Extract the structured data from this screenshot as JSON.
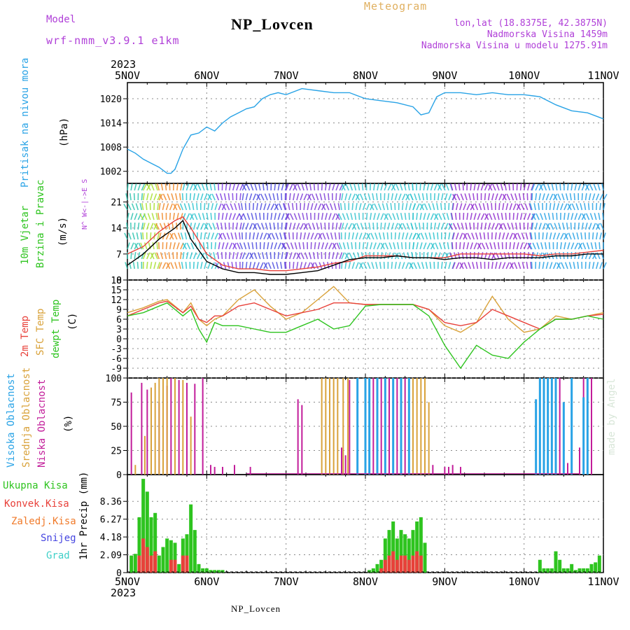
{
  "header": {
    "model_label": "Model",
    "model_value": "wrf-nmm_v3.9.1 e1km",
    "title": "NP_Lovcen",
    "meteogram": "Meteogram",
    "lonlat": "lon,lat (18.8375E, 42.3875N)",
    "elevation": "Nadmorska Visina 1459m",
    "model_elevation": "Nadmorska Visina u modelu 1275.91m",
    "year_top": "2023",
    "year_bottom": "2023",
    "footer": "NP_Lovcen",
    "watermark": "made by Angel"
  },
  "colors": {
    "pressure": "#29a3e6",
    "temp2m": "#e8413a",
    "sfc": "#d9a23a",
    "dew": "#2ec41f",
    "high_cloud": "#29a3e6",
    "mid_cloud": "#d9a23a",
    "low_cloud": "#c21d9a",
    "precip_total": "#2ec41f",
    "precip_conv": "#e8413a",
    "frozen": "#f07a2a",
    "snow": "#4545e0",
    "graupel": "#3fd0c8"
  },
  "chart_data": [
    {
      "id": "pressure",
      "type": "line",
      "ylabel_left": "Pritisak na nivou mora",
      "ylabel_unit": "(hPa)",
      "ylim": [
        999,
        1024
      ],
      "yticks": [
        "1002",
        "1008",
        "1014",
        "1020"
      ],
      "x_days": [
        "5NOV",
        "6NOV",
        "7NOV",
        "8NOV",
        "9NOV",
        "10NOV",
        "11NOV"
      ],
      "series": [
        {
          "x": [
            0,
            0.1,
            0.2,
            0.3,
            0.4,
            0.5,
            0.55,
            0.6,
            0.7,
            0.8,
            0.9,
            1.0,
            1.1,
            1.2,
            1.3,
            1.4,
            1.5,
            1.6,
            1.7,
            1.8,
            1.9,
            2.0,
            2.2,
            2.4,
            2.6,
            2.8,
            3.0,
            3.2,
            3.4,
            3.6,
            3.7,
            3.8,
            3.9,
            4.0,
            4.2,
            4.4,
            4.6,
            4.8,
            5.0,
            5.2,
            5.4,
            5.6,
            5.8,
            6.0
          ],
          "y": [
            1007.5,
            1006.5,
            1005,
            1004,
            1003,
            1001.5,
            1001.5,
            1002.5,
            1007.5,
            1011,
            1011.5,
            1013,
            1012,
            1014,
            1015.5,
            1016.5,
            1017.5,
            1018,
            1020,
            1021,
            1021.5,
            1021,
            1022.5,
            1022,
            1021.5,
            1021.5,
            1020,
            1019.5,
            1019,
            1018,
            1016,
            1016.5,
            1020.5,
            1021.5,
            1021.5,
            1021,
            1021.5,
            1021,
            1021,
            1020.5,
            1018.5,
            1017,
            1016.5,
            1015
          ]
        }
      ]
    },
    {
      "id": "wind",
      "type": "line",
      "ylabel_left": "10m Vjetar",
      "ylabel_left2": "Brzina i Pravac",
      "ylabel_unit": "(m/s)",
      "dir_label": "N^ W<-|->E  S",
      "ylim": [
        0,
        26
      ],
      "yticks": [
        "0",
        "7",
        "14",
        "21"
      ],
      "series": [
        {
          "x": [
            0,
            0.2,
            0.4,
            0.6,
            0.7,
            0.8,
            1.0,
            1.2,
            1.4,
            1.6,
            1.8,
            2.0,
            2.2,
            2.4,
            2.6,
            2.8,
            3.0,
            3.2,
            3.4,
            3.6,
            3.8,
            4.0,
            4.2,
            4.4,
            4.6,
            4.8,
            5.0,
            5.2,
            5.4,
            5.6,
            5.8,
            6.0
          ],
          "y": [
            7,
            9,
            13,
            16,
            17,
            14,
            7,
            4,
            3,
            3,
            2.5,
            2.5,
            3,
            3.5,
            4.5,
            5,
            6.5,
            6.5,
            6.5,
            6,
            6,
            6,
            7,
            7,
            7,
            7,
            7,
            6.5,
            7,
            7,
            7.5,
            8
          ]
        },
        {
          "x": [
            0,
            0.2,
            0.4,
            0.6,
            0.7,
            0.8,
            1.0,
            1.2,
            1.4,
            1.6,
            1.8,
            2.0,
            2.2,
            2.4,
            2.6,
            2.8,
            3.0,
            3.2,
            3.4,
            3.6,
            3.8,
            4.0,
            4.2,
            4.4,
            4.6,
            4.8,
            5.0,
            5.2,
            5.4,
            5.6,
            5.8,
            6.0
          ],
          "y": [
            4,
            7,
            11,
            14,
            16,
            11,
            5,
            3,
            2,
            2,
            1.5,
            1.5,
            2,
            2.5,
            4,
            5.5,
            6,
            6,
            6.5,
            6,
            6,
            5.5,
            6,
            6,
            5.5,
            6,
            6,
            6,
            6.5,
            6.5,
            7,
            7
          ]
        }
      ]
    },
    {
      "id": "temperature",
      "type": "line",
      "ylabel_left": "2m Temp",
      "ylabel_left2": "SFC Temp",
      "ylabel_left3": "dewpt Temp",
      "ylabel_unit": "(C)",
      "ylim": [
        -12,
        18
      ],
      "yticks": [
        "-9",
        "-6",
        "-3",
        "0",
        "3",
        "6",
        "9",
        "12",
        "15",
        "18"
      ],
      "series": [
        {
          "name": "2m",
          "x": [
            0,
            0.2,
            0.4,
            0.5,
            0.7,
            0.8,
            0.9,
            1.0,
            1.1,
            1.2,
            1.4,
            1.6,
            1.8,
            2.0,
            2.2,
            2.4,
            2.6,
            2.8,
            3.0,
            3.2,
            3.4,
            3.6,
            3.8,
            4.0,
            4.2,
            4.4,
            4.6,
            4.8,
            5.0,
            5.2,
            5.4,
            5.6,
            5.8,
            6.0
          ],
          "y": [
            7,
            9,
            11,
            11.5,
            8,
            10,
            6,
            5,
            7,
            7,
            10,
            11,
            9,
            7,
            8,
            9,
            11,
            11,
            10.5,
            10.5,
            10.5,
            10.5,
            9,
            5,
            4,
            5,
            9,
            7,
            5,
            3,
            6,
            6,
            7,
            7.5
          ]
        },
        {
          "name": "sfc",
          "x": [
            0,
            0.2,
            0.4,
            0.5,
            0.7,
            0.8,
            0.9,
            1.0,
            1.1,
            1.2,
            1.4,
            1.6,
            1.8,
            2.0,
            2.2,
            2.4,
            2.6,
            2.8,
            3.0,
            3.2,
            3.4,
            3.6,
            3.8,
            4.0,
            4.2,
            4.4,
            4.6,
            4.8,
            5.0,
            5.2,
            5.4,
            5.6,
            5.8,
            6.0
          ],
          "y": [
            8,
            9.5,
            11.5,
            12,
            8,
            11,
            6,
            4,
            6,
            7,
            12,
            15,
            10,
            6,
            8,
            12,
            16,
            11,
            10.5,
            10.5,
            10.5,
            10.5,
            9,
            4,
            2,
            5,
            13,
            6,
            2,
            3,
            7,
            6,
            7,
            8
          ]
        },
        {
          "name": "dew",
          "x": [
            0,
            0.2,
            0.4,
            0.5,
            0.7,
            0.8,
            0.9,
            1.0,
            1.1,
            1.2,
            1.4,
            1.6,
            1.8,
            2.0,
            2.2,
            2.4,
            2.6,
            2.8,
            3.0,
            3.2,
            3.4,
            3.6,
            3.8,
            4.0,
            4.2,
            4.4,
            4.6,
            4.8,
            5.0,
            5.2,
            5.4,
            5.6,
            5.8,
            6.0
          ],
          "y": [
            7,
            8,
            10,
            11,
            7,
            9,
            3,
            -1,
            5,
            4,
            4,
            3,
            2,
            2,
            4,
            6,
            3,
            4,
            10,
            10.5,
            10.5,
            10.5,
            7,
            -2,
            -9,
            -2,
            -5,
            -6,
            -1,
            3,
            6,
            6,
            7,
            6
          ]
        }
      ]
    },
    {
      "id": "clouds",
      "type": "bar",
      "ylabel_left": "Visoka Oblacnost",
      "ylabel_left2": "Srednja Oblacnost",
      "ylabel_left3": "Niska Oblacnost",
      "ylabel_unit": "(%)",
      "ylim": [
        0,
        100
      ],
      "yticks": [
        "0",
        "25",
        "50",
        "75",
        "100"
      ],
      "series": [
        {
          "name": "low",
          "x": [
            0.05,
            0.18,
            0.25,
            0.3,
            0.4,
            0.5,
            0.55,
            0.65,
            0.75,
            0.85,
            0.95,
            1.05,
            1.1,
            1.2,
            1.35,
            1.55,
            2.15,
            2.2,
            2.7,
            2.75,
            2.8,
            2.9,
            3.05,
            3.1,
            3.2,
            3.3,
            3.4,
            3.5,
            3.6,
            3.75,
            3.85,
            4.0,
            4.05,
            4.1,
            4.2,
            5.45,
            5.55,
            5.7,
            5.75,
            5.85
          ],
          "y": [
            85,
            95,
            88,
            90,
            75,
            92,
            100,
            98,
            95,
            94,
            100,
            10,
            8,
            8,
            10,
            8,
            78,
            72,
            28,
            20,
            98,
            95,
            100,
            100,
            100,
            100,
            100,
            100,
            100,
            10,
            10,
            8,
            8,
            10,
            8,
            100,
            12,
            28,
            100,
            100
          ]
        },
        {
          "name": "mid",
          "x": [
            0.1,
            0.22,
            0.3,
            0.35,
            0.4,
            0.45,
            0.5,
            0.6,
            0.7,
            0.8,
            2.45,
            2.5,
            2.55,
            2.6,
            2.65,
            2.72,
            2.78,
            3.6,
            3.65,
            3.7,
            3.75,
            3.8
          ],
          "y": [
            10,
            40,
            90,
            95,
            100,
            100,
            100,
            100,
            98,
            60,
            100,
            100,
            100,
            100,
            100,
            100,
            100,
            100,
            100,
            100,
            100,
            75
          ]
        },
        {
          "name": "high",
          "x": [
            2.9,
            3.0,
            3.05,
            3.15,
            3.25,
            3.35,
            3.45,
            3.55,
            5.15,
            5.2,
            5.25,
            5.3,
            5.35,
            5.4,
            5.5,
            5.6,
            5.75,
            5.8
          ],
          "y": [
            100,
            100,
            100,
            100,
            100,
            100,
            100,
            100,
            78,
            100,
            100,
            100,
            100,
            100,
            75,
            100,
            80,
            100
          ]
        }
      ]
    },
    {
      "id": "precip",
      "type": "bar",
      "legend": [
        "Ukupna Kisa",
        "Konvek.Kisa",
        "Zaledj.Kisa",
        "Snijeg",
        "Grad"
      ],
      "ylabel_unit": "1hr Precip (mm)",
      "ylim": [
        0,
        11.5
      ],
      "yticks": [
        "0",
        "2.09",
        "4.18",
        "6.27",
        "8.36"
      ],
      "series": [
        {
          "name": "total",
          "x": [
            0.05,
            0.1,
            0.15,
            0.2,
            0.25,
            0.3,
            0.35,
            0.4,
            0.45,
            0.5,
            0.55,
            0.6,
            0.65,
            0.7,
            0.75,
            0.8,
            0.85,
            0.9,
            0.95,
            1.0,
            1.05,
            1.1,
            1.15,
            1.2,
            3.05,
            3.1,
            3.15,
            3.2,
            3.25,
            3.3,
            3.35,
            3.4,
            3.45,
            3.5,
            3.55,
            3.6,
            3.65,
            3.7,
            3.75,
            5.2,
            5.25,
            5.3,
            5.35,
            5.4,
            5.45,
            5.5,
            5.55,
            5.6,
            5.65,
            5.7,
            5.75,
            5.8,
            5.85,
            5.9,
            5.95
          ],
          "y": [
            2,
            2.2,
            6.5,
            11,
            9.5,
            6.5,
            7,
            2,
            3,
            4,
            3.8,
            3.5,
            1,
            4,
            4.5,
            8,
            5,
            1,
            0.5,
            0.5,
            0.3,
            0.3,
            0.3,
            0.3,
            0.3,
            0.5,
            1,
            1.5,
            4,
            5,
            6,
            4,
            5,
            4.5,
            4,
            5,
            6,
            6.5,
            3.5,
            1.5,
            0.5,
            0.5,
            0.5,
            2.5,
            1.5,
            0.5,
            0.5,
            1,
            0.3,
            0.5,
            0.5,
            0.5,
            1,
            1.2,
            2
          ]
        },
        {
          "name": "convective",
          "x": [
            0.15,
            0.2,
            0.25,
            0.3,
            0.35,
            0.55,
            0.6,
            0.7,
            0.75,
            3.2,
            3.25,
            3.3,
            3.35,
            3.4,
            3.45,
            3.5,
            3.55,
            3.6,
            3.65,
            3.7
          ],
          "y": [
            2,
            4,
            3,
            2,
            2.5,
            1.5,
            1.5,
            2,
            2,
            0.5,
            1.5,
            2,
            2.5,
            1.5,
            2,
            2,
            1.5,
            2,
            2.5,
            2
          ]
        }
      ]
    }
  ]
}
